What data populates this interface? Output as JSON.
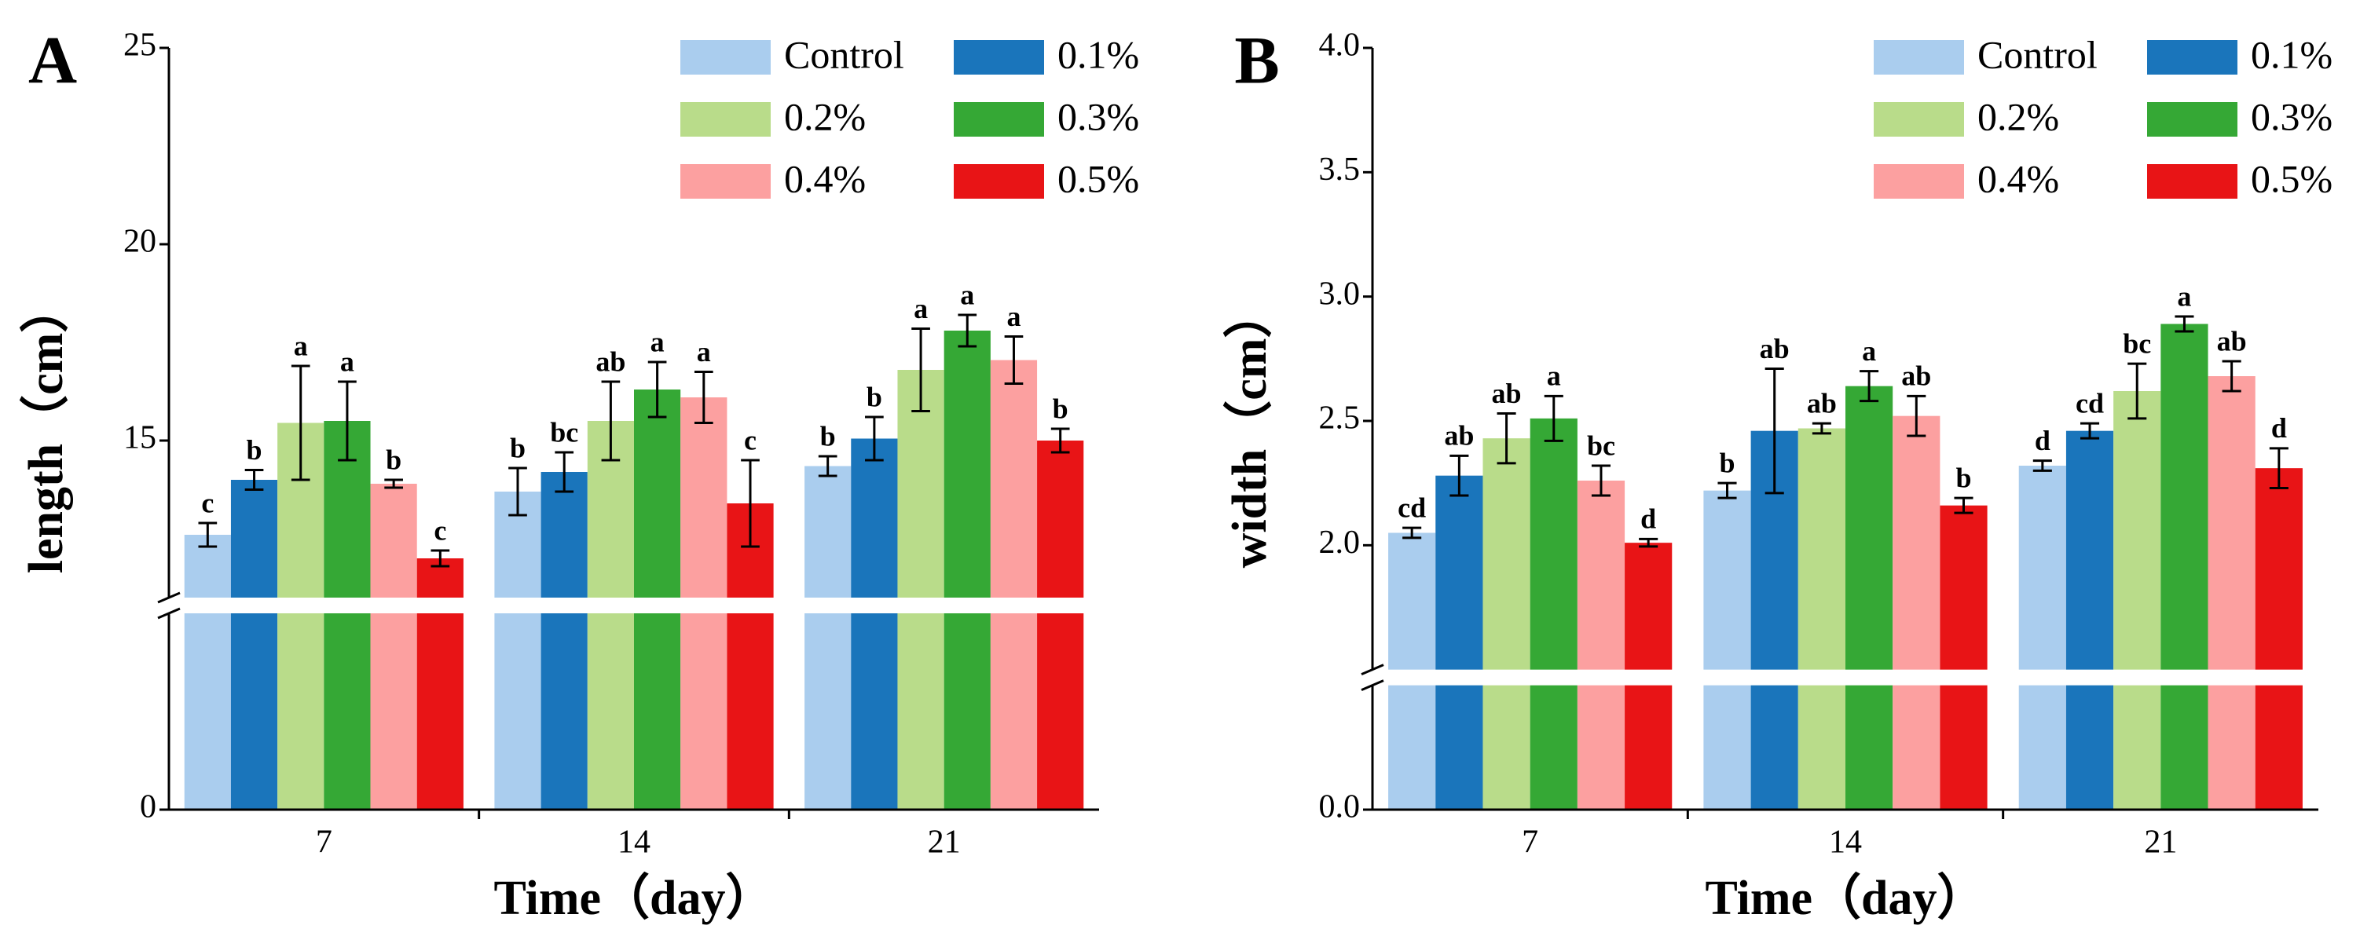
{
  "chart_data": [
    {
      "type": "bar",
      "panel": "A",
      "ylabel": "length（cm）",
      "xlabel": "Time（day）",
      "categories": [
        "7",
        "14",
        "21"
      ],
      "ylim": [
        0,
        25
      ],
      "ybreak": [
        5,
        11
      ],
      "yticks": [
        0,
        15,
        20,
        25
      ],
      "legend": "upper right",
      "series": [
        {
          "name": "Control",
          "color": "#aacdee",
          "values": [
            12.6,
            13.7,
            14.35
          ],
          "errors": [
            0.3,
            0.6,
            0.25
          ],
          "letters": [
            "c",
            "b",
            "b"
          ]
        },
        {
          "name": "0.1%",
          "color": "#1a75bb",
          "values": [
            14.0,
            14.2,
            15.05
          ],
          "errors": [
            0.25,
            0.5,
            0.55
          ],
          "letters": [
            "b",
            "bc",
            "b"
          ]
        },
        {
          "name": "0.2%",
          "color": "#b9dc8a",
          "values": [
            15.45,
            15.5,
            16.8
          ],
          "errors": [
            1.45,
            1.0,
            1.05
          ],
          "letters": [
            "a",
            "ab",
            "a"
          ]
        },
        {
          "name": "0.3%",
          "color": "#35a835",
          "values": [
            15.5,
            16.3,
            17.8
          ],
          "errors": [
            1.0,
            0.7,
            0.4
          ],
          "letters": [
            "a",
            "a",
            "a"
          ]
        },
        {
          "name": "0.4%",
          "color": "#fca0a0",
          "values": [
            13.9,
            16.1,
            17.05
          ],
          "errors": [
            0.1,
            0.65,
            0.6
          ],
          "letters": [
            "b",
            "a",
            "a"
          ]
        },
        {
          "name": "0.5%",
          "color": "#e81416",
          "values": [
            12.0,
            13.4,
            15.0
          ],
          "errors": [
            0.2,
            1.1,
            0.3
          ],
          "letters": [
            "c",
            "c",
            "b"
          ]
        }
      ]
    },
    {
      "type": "bar",
      "panel": "B",
      "ylabel": "width（cm）",
      "xlabel": "Time（day）",
      "categories": [
        "7",
        "14",
        "21"
      ],
      "ylim": [
        0,
        4
      ],
      "ybreak": [
        0.5,
        1.5
      ],
      "yticks": [
        {
          "value": 0,
          "label": "0.0"
        },
        {
          "value": 2,
          "label": "2.0"
        },
        2.5,
        {
          "value": 3,
          "label": "3.0"
        },
        3.5,
        {
          "value": 4,
          "label": "4.0"
        }
      ],
      "legend": "upper right",
      "series": [
        {
          "name": "Control",
          "color": "#aacdee",
          "values": [
            2.05,
            2.22,
            2.32
          ],
          "errors": [
            0.02,
            0.03,
            0.02
          ],
          "letters": [
            "cd",
            "b",
            "d"
          ]
        },
        {
          "name": "0.1%",
          "color": "#1a75bb",
          "values": [
            2.28,
            2.46,
            2.46
          ],
          "errors": [
            0.08,
            0.25,
            0.03
          ],
          "letters": [
            "ab",
            "ab",
            "cd"
          ]
        },
        {
          "name": "0.2%",
          "color": "#b9dc8a",
          "values": [
            2.43,
            2.47,
            2.62
          ],
          "errors": [
            0.1,
            0.02,
            0.11
          ],
          "letters": [
            "ab",
            "ab",
            "bc"
          ]
        },
        {
          "name": "0.3%",
          "color": "#35a835",
          "values": [
            2.51,
            2.64,
            2.89
          ],
          "errors": [
            0.09,
            0.06,
            0.03
          ],
          "letters": [
            "a",
            "a",
            "a"
          ]
        },
        {
          "name": "0.4%",
          "color": "#fca0a0",
          "values": [
            2.26,
            2.52,
            2.68
          ],
          "errors": [
            0.06,
            0.08,
            0.06
          ],
          "letters": [
            "bc",
            "ab",
            "ab"
          ]
        },
        {
          "name": "0.5%",
          "color": "#e81416",
          "values": [
            2.01,
            2.16,
            2.31
          ],
          "errors": [
            0.015,
            0.03,
            0.08
          ],
          "letters": [
            "d",
            "b",
            "d"
          ]
        }
      ]
    }
  ]
}
